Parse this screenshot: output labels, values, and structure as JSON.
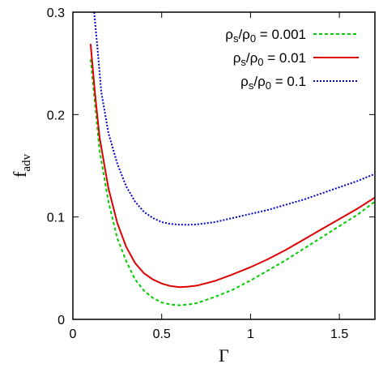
{
  "chart_data": {
    "type": "line",
    "xlabel": "Γ",
    "ylabel": "f_adv",
    "ylabel_main": "f",
    "ylabel_sub": "adv",
    "xlim": [
      0,
      1.7
    ],
    "ylim": [
      0,
      0.3
    ],
    "x_ticks": [
      0,
      0.5,
      1,
      1.5
    ],
    "x_tick_labels": [
      "0",
      "0.5",
      "1",
      "1.5"
    ],
    "y_ticks": [
      0,
      0.1,
      0.2,
      0.3
    ],
    "y_tick_labels": [
      "0",
      "0.1",
      "0.2",
      "0.3"
    ],
    "grid": false,
    "legend_position": "top-right",
    "series": [
      {
        "name": "ρ_s/ρ_0 = 0.001",
        "legend_parts": [
          "ρ",
          "s",
          "/ρ",
          "0",
          " = 0.001"
        ],
        "color": "#00cc00",
        "dash": "dashed",
        "x": [
          0.1,
          0.125,
          0.15,
          0.2,
          0.25,
          0.3,
          0.35,
          0.4,
          0.45,
          0.5,
          0.55,
          0.6,
          0.65,
          0.7,
          0.8,
          0.9,
          1.0,
          1.1,
          1.2,
          1.3,
          1.4,
          1.5,
          1.6,
          1.7
        ],
        "y": [
          0.254,
          0.21,
          0.165,
          0.115,
          0.079,
          0.057,
          0.039,
          0.028,
          0.021,
          0.0165,
          0.0145,
          0.0138,
          0.0145,
          0.016,
          0.022,
          0.029,
          0.038,
          0.048,
          0.058,
          0.069,
          0.08,
          0.091,
          0.102,
          0.115
        ]
      },
      {
        "name": "ρ_s/ρ_0 = 0.01",
        "legend_parts": [
          "ρ",
          "s",
          "/ρ",
          "0",
          " = 0.01"
        ],
        "color": "#dd0000",
        "dash": "solid",
        "x": [
          0.1,
          0.125,
          0.15,
          0.2,
          0.25,
          0.3,
          0.35,
          0.4,
          0.45,
          0.5,
          0.55,
          0.6,
          0.65,
          0.7,
          0.8,
          0.9,
          1.0,
          1.1,
          1.2,
          1.3,
          1.4,
          1.5,
          1.6,
          1.7
        ],
        "y": [
          0.269,
          0.22,
          0.178,
          0.128,
          0.094,
          0.071,
          0.055,
          0.045,
          0.039,
          0.035,
          0.0325,
          0.0315,
          0.032,
          0.033,
          0.0375,
          0.044,
          0.051,
          0.059,
          0.068,
          0.078,
          0.088,
          0.098,
          0.108,
          0.119
        ]
      },
      {
        "name": "ρ_s/ρ_0 = 0.1",
        "legend_parts": [
          "ρ",
          "s",
          "/ρ",
          "0",
          " = 0.1"
        ],
        "color": "#0000cc",
        "dash": "dotted",
        "x": [
          0.12,
          0.14,
          0.16,
          0.2,
          0.25,
          0.3,
          0.35,
          0.4,
          0.45,
          0.5,
          0.55,
          0.6,
          0.65,
          0.7,
          0.8,
          0.9,
          1.0,
          1.1,
          1.2,
          1.3,
          1.4,
          1.5,
          1.6,
          1.7
        ],
        "y": [
          0.3,
          0.262,
          0.222,
          0.182,
          0.152,
          0.13,
          0.115,
          0.105,
          0.099,
          0.095,
          0.0932,
          0.0925,
          0.0924,
          0.0928,
          0.095,
          0.099,
          0.103,
          0.107,
          0.112,
          0.117,
          0.123,
          0.129,
          0.135,
          0.142
        ]
      }
    ]
  }
}
